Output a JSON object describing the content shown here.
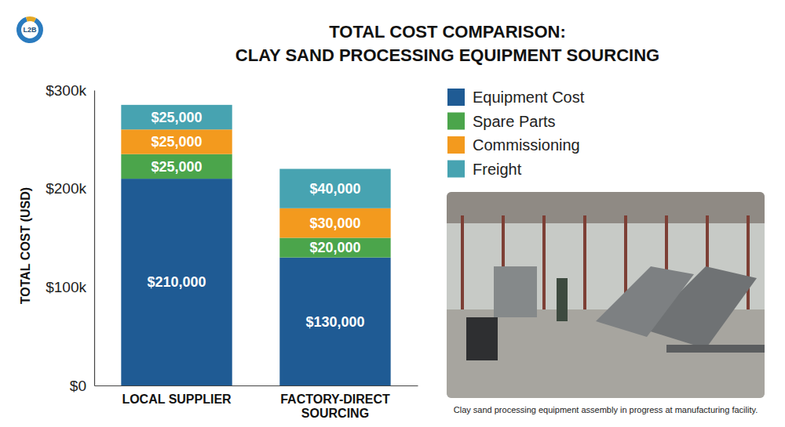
{
  "chart_data": {
    "type": "bar",
    "title": "TOTAL COST COMPARISON:\nCLAY SAND PROCESSING EQUIPMENT SOURCING",
    "y_label": "TOTAL COST (USD)",
    "categories": [
      "LOCAL SUPPLIER",
      "FACTORY-DIRECT SOURCING"
    ],
    "series": [
      {
        "name": "Equipment Cost",
        "color": "#1f5b94",
        "values": [
          210000,
          130000
        ],
        "value_labels": [
          "$210,000",
          "$130,000"
        ]
      },
      {
        "name": "Spare Parts",
        "color": "#4ba54b",
        "values": [
          25000,
          20000
        ],
        "value_labels": [
          "$25,000",
          "$20,000"
        ]
      },
      {
        "name": "Commissioning",
        "color": "#f39a1e",
        "values": [
          25000,
          30000
        ],
        "value_labels": [
          "$25,000",
          "$30,000"
        ]
      },
      {
        "name": "Freight",
        "color": "#47a3b1",
        "values": [
          25000,
          40000
        ],
        "value_labels": [
          "$25,000",
          "$40,000"
        ]
      }
    ],
    "stacked": true,
    "data_labels": true,
    "legend": "right",
    "grid": false,
    "ylim": [
      0,
      300000
    ],
    "yticks": [
      {
        "value": 0,
        "label": "$0"
      },
      {
        "value": 100000,
        "label": "$100k"
      },
      {
        "value": 200000,
        "label": "$200k"
      },
      {
        "value": 300000,
        "label": "$300k"
      }
    ],
    "caption": "Clay sand processing equipment assembly in progress at manufacturing facility.",
    "logo": "L2B"
  }
}
